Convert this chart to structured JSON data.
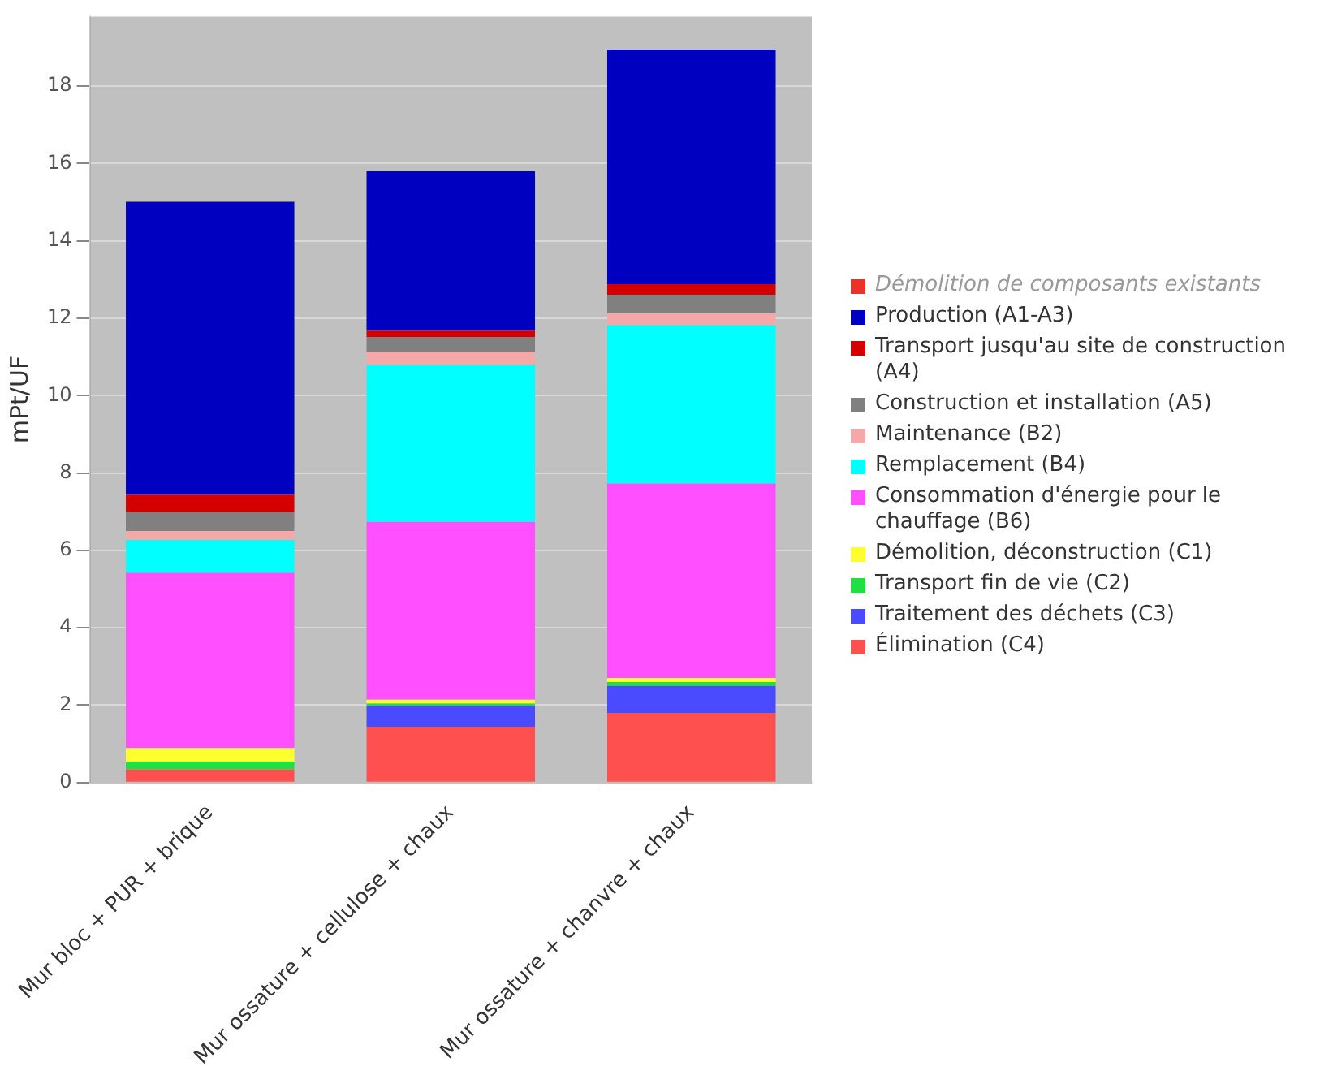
{
  "chart_data": {
    "type": "bar",
    "stacked": true,
    "ylabel": "mPt/UF",
    "categories": [
      "Mur bloc + PUR + brique",
      "Mur ossature + cellulose + chaux",
      "Mur ossature + chanvre + chaux"
    ],
    "series": [
      {
        "name": "Élimination (C4)",
        "color": "#ff5050",
        "values": [
          0.34,
          1.44,
          1.8
        ]
      },
      {
        "name": "Traitement des déchets (C3)",
        "color": "#4a4aff",
        "values": [
          0,
          0.54,
          0.7
        ]
      },
      {
        "name": "Transport fin de vie (C2)",
        "color": "#20e040",
        "values": [
          0.2,
          0.06,
          0.1
        ]
      },
      {
        "name": "Démolition, déconstruction (C1)",
        "color": "#ffff30",
        "values": [
          0.35,
          0.1,
          0.1
        ]
      },
      {
        "name": "Consommation d'énergie pour le chauffage (B6)",
        "color": "#ff4fff",
        "values": [
          4.53,
          4.6,
          5.03
        ]
      },
      {
        "name": "Remplacement (B4)",
        "color": "#00ffff",
        "values": [
          0.85,
          4.06,
          4.09
        ]
      },
      {
        "name": "Maintenance (B2)",
        "color": "#f4a8a8",
        "values": [
          0.23,
          0.33,
          0.31
        ]
      },
      {
        "name": "Construction et installation (A5)",
        "color": "#808080",
        "values": [
          0.49,
          0.39,
          0.48
        ]
      },
      {
        "name": "Transport jusqu'au site de construction (A4)",
        "color": "#d40000",
        "values": [
          0.45,
          0.16,
          0.27
        ]
      },
      {
        "name": "Production (A1-A3)",
        "color": "#0000c0",
        "values": [
          7.57,
          4.13,
          6.07
        ]
      },
      {
        "name": "Démolition de composants existants",
        "color": "#e8322a",
        "values": [
          null,
          null,
          null
        ]
      }
    ],
    "ylim": [
      0,
      19.8
    ],
    "yticks": [
      0,
      2,
      4,
      6,
      8,
      10,
      12,
      14,
      16,
      18
    ],
    "grid": "y",
    "legend": "right"
  }
}
